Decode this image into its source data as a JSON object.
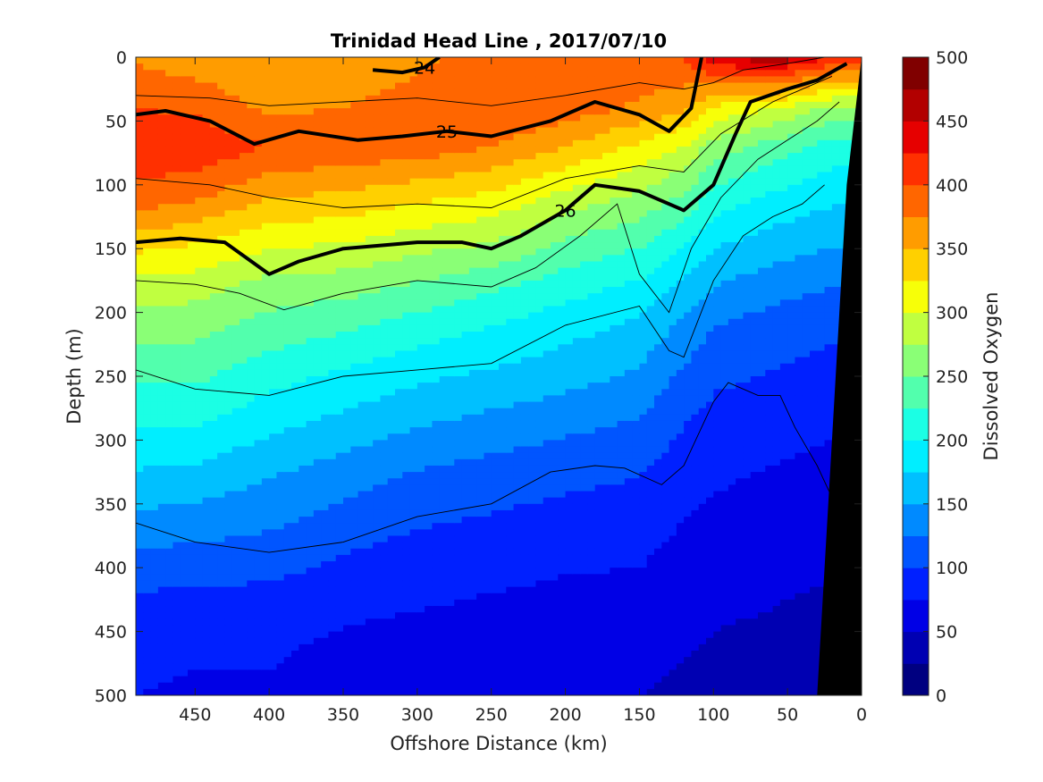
{
  "chart_data": {
    "type": "heatmap",
    "title": "Trinidad Head Line , 2017/07/10",
    "xlabel": "Offshore Distance (km)",
    "ylabel": "Depth (m)",
    "colorbar_label": "Dissolved Oxygen",
    "xlim": [
      490,
      0
    ],
    "ylim": [
      0,
      500
    ],
    "x_ticks": [
      450,
      400,
      350,
      300,
      250,
      200,
      150,
      100,
      50,
      0
    ],
    "y_ticks": [
      0,
      50,
      100,
      150,
      200,
      250,
      300,
      350,
      400,
      450,
      500
    ],
    "colorbar_ticks": [
      0,
      50,
      100,
      150,
      200,
      250,
      300,
      350,
      400,
      450,
      500
    ],
    "colorbar_range": [
      0,
      500
    ],
    "colormap": [
      "#000080",
      "#0000b2",
      "#0000e6",
      "#0020ff",
      "#0055ff",
      "#008aff",
      "#00c0ff",
      "#00eeff",
      "#1bffe4",
      "#52ffad",
      "#8aff76",
      "#c0ff40",
      "#f7ff08",
      "#ffd000",
      "#ff9c00",
      "#ff6600",
      "#ff3000",
      "#e60000",
      "#b20000",
      "#800000"
    ],
    "oxygen_profiles": [
      {
        "x": 490,
        "depth": [
          0,
          40,
          70,
          110,
          150,
          180,
          210,
          250,
          290,
          330,
          380,
          420,
          460,
          500
        ],
        "oxygen": [
          370,
          400,
          420,
          390,
          330,
          290,
          260,
          230,
          200,
          170,
          130,
          100,
          85,
          75
        ]
      },
      {
        "x": 450,
        "depth": [
          0,
          40,
          70,
          110,
          150,
          180,
          210,
          250,
          290,
          330,
          380,
          420,
          460,
          500
        ],
        "oxygen": [
          360,
          395,
          420,
          380,
          320,
          285,
          260,
          230,
          200,
          165,
          125,
          95,
          80,
          70
        ]
      },
      {
        "x": 400,
        "depth": [
          0,
          40,
          70,
          110,
          150,
          180,
          210,
          250,
          290,
          330,
          380,
          420,
          460,
          500
        ],
        "oxygen": [
          350,
          370,
          400,
          350,
          300,
          265,
          240,
          210,
          180,
          150,
          120,
          95,
          80,
          70
        ]
      },
      {
        "x": 350,
        "depth": [
          0,
          40,
          70,
          110,
          150,
          180,
          210,
          250,
          290,
          330,
          380,
          420,
          460,
          500
        ],
        "oxygen": [
          355,
          375,
          395,
          345,
          295,
          260,
          230,
          195,
          165,
          135,
          105,
          85,
          70,
          62
        ]
      },
      {
        "x": 300,
        "depth": [
          0,
          40,
          70,
          110,
          150,
          180,
          210,
          250,
          290,
          330,
          380,
          420,
          460,
          500
        ],
        "oxygen": [
          370,
          385,
          390,
          330,
          280,
          245,
          215,
          180,
          150,
          120,
          95,
          80,
          65,
          58
        ]
      },
      {
        "x": 250,
        "depth": [
          0,
          40,
          70,
          110,
          150,
          180,
          210,
          250,
          290,
          330,
          380,
          420,
          460,
          500
        ],
        "oxygen": [
          385,
          400,
          375,
          320,
          270,
          230,
          200,
          170,
          140,
          112,
          90,
          75,
          62,
          55
        ]
      },
      {
        "x": 200,
        "depth": [
          0,
          40,
          70,
          110,
          150,
          180,
          210,
          250,
          290,
          330,
          380,
          420,
          460,
          500
        ],
        "oxygen": [
          395,
          390,
          350,
          290,
          240,
          210,
          185,
          160,
          130,
          105,
          85,
          70,
          60,
          52
        ]
      },
      {
        "x": 150,
        "depth": [
          0,
          40,
          70,
          110,
          150,
          180,
          210,
          250,
          290,
          330,
          380,
          420,
          460,
          500
        ],
        "oxygen": [
          395,
          370,
          320,
          270,
          225,
          195,
          170,
          145,
          120,
          100,
          82,
          68,
          58,
          50
        ]
      },
      {
        "x": 120,
        "depth": [
          0,
          40,
          70,
          110,
          150,
          180,
          210,
          250,
          290,
          330,
          380,
          420,
          460,
          500
        ],
        "oxygen": [
          400,
          355,
          300,
          245,
          200,
          170,
          145,
          120,
          100,
          85,
          70,
          60,
          52,
          45
        ]
      },
      {
        "x": 100,
        "depth": [
          0,
          40,
          70,
          110,
          150,
          180,
          210,
          250,
          290,
          330,
          380,
          420,
          460,
          500
        ],
        "oxygen": [
          440,
          320,
          265,
          215,
          175,
          150,
          125,
          105,
          90,
          78,
          66,
          56,
          48,
          42
        ]
      },
      {
        "x": 60,
        "depth": [
          0,
          40,
          70,
          110,
          150,
          180,
          210,
          250,
          290,
          330,
          380,
          420,
          460,
          500
        ],
        "oxygen": [
          470,
          300,
          240,
          195,
          160,
          135,
          115,
          98,
          85,
          72,
          60,
          52,
          45,
          40
        ]
      },
      {
        "x": 20,
        "depth": [
          0,
          40,
          70,
          110,
          150,
          180,
          210,
          250,
          290,
          330,
          380,
          420,
          460,
          500
        ],
        "oxygen": [
          420,
          270,
          215,
          180,
          150,
          125,
          105,
          90,
          78,
          65,
          55,
          48,
          42,
          38
        ]
      }
    ],
    "bold_isopycnals": [
      {
        "label": "24",
        "x": [
          330,
          310,
          295,
          285
        ],
        "depth": [
          10,
          12,
          8,
          0
        ]
      },
      {
        "label": "25",
        "x": [
          490,
          470,
          440,
          410,
          380,
          340,
          310,
          280,
          250,
          210,
          180,
          150,
          130,
          115,
          108
        ],
        "depth": [
          45,
          42,
          50,
          68,
          58,
          65,
          62,
          58,
          62,
          50,
          35,
          45,
          58,
          40,
          0
        ]
      },
      {
        "label": "26",
        "x": [
          490,
          460,
          430,
          400,
          380,
          350,
          300,
          270,
          250,
          230,
          200,
          180,
          150,
          120,
          100,
          85,
          75,
          50,
          30,
          10
        ],
        "depth": [
          145,
          142,
          145,
          170,
          160,
          150,
          145,
          145,
          150,
          140,
          120,
          100,
          105,
          120,
          100,
          60,
          35,
          25,
          18,
          5
        ]
      }
    ],
    "thin_isopycnals": [
      {
        "x": [
          490,
          440,
          400,
          350,
          300,
          250,
          200,
          150,
          120,
          100,
          80,
          50,
          25
        ],
        "depth": [
          30,
          32,
          38,
          35,
          32,
          38,
          30,
          20,
          25,
          20,
          10,
          5,
          0
        ]
      },
      {
        "x": [
          490,
          440,
          400,
          350,
          300,
          250,
          200,
          150,
          120,
          95,
          60,
          20
        ],
        "depth": [
          95,
          100,
          110,
          118,
          115,
          118,
          95,
          85,
          90,
          60,
          35,
          15
        ]
      },
      {
        "x": [
          490,
          450,
          420,
          390,
          350,
          300,
          250,
          220,
          190,
          165,
          150,
          130,
          115,
          95,
          70,
          50,
          30,
          15
        ],
        "depth": [
          175,
          178,
          185,
          198,
          185,
          175,
          180,
          165,
          140,
          115,
          170,
          200,
          150,
          110,
          80,
          65,
          50,
          35
        ]
      },
      {
        "x": [
          490,
          450,
          400,
          350,
          300,
          250,
          200,
          150,
          130,
          120,
          100,
          80,
          60,
          40,
          25
        ],
        "depth": [
          245,
          260,
          265,
          250,
          245,
          240,
          210,
          195,
          230,
          235,
          175,
          140,
          125,
          115,
          100
        ]
      },
      {
        "x": [
          490,
          450,
          400,
          350,
          300,
          250,
          210,
          180,
          160,
          135,
          120,
          100,
          90,
          70,
          55,
          45,
          30,
          20
        ],
        "depth": [
          365,
          380,
          388,
          380,
          360,
          350,
          325,
          320,
          322,
          335,
          320,
          270,
          255,
          265,
          265,
          290,
          320,
          345
        ]
      }
    ],
    "seafloor_mask": {
      "x": [
        0,
        10,
        20,
        30
      ],
      "depth_top": [
        0,
        100,
        300,
        500
      ]
    }
  }
}
